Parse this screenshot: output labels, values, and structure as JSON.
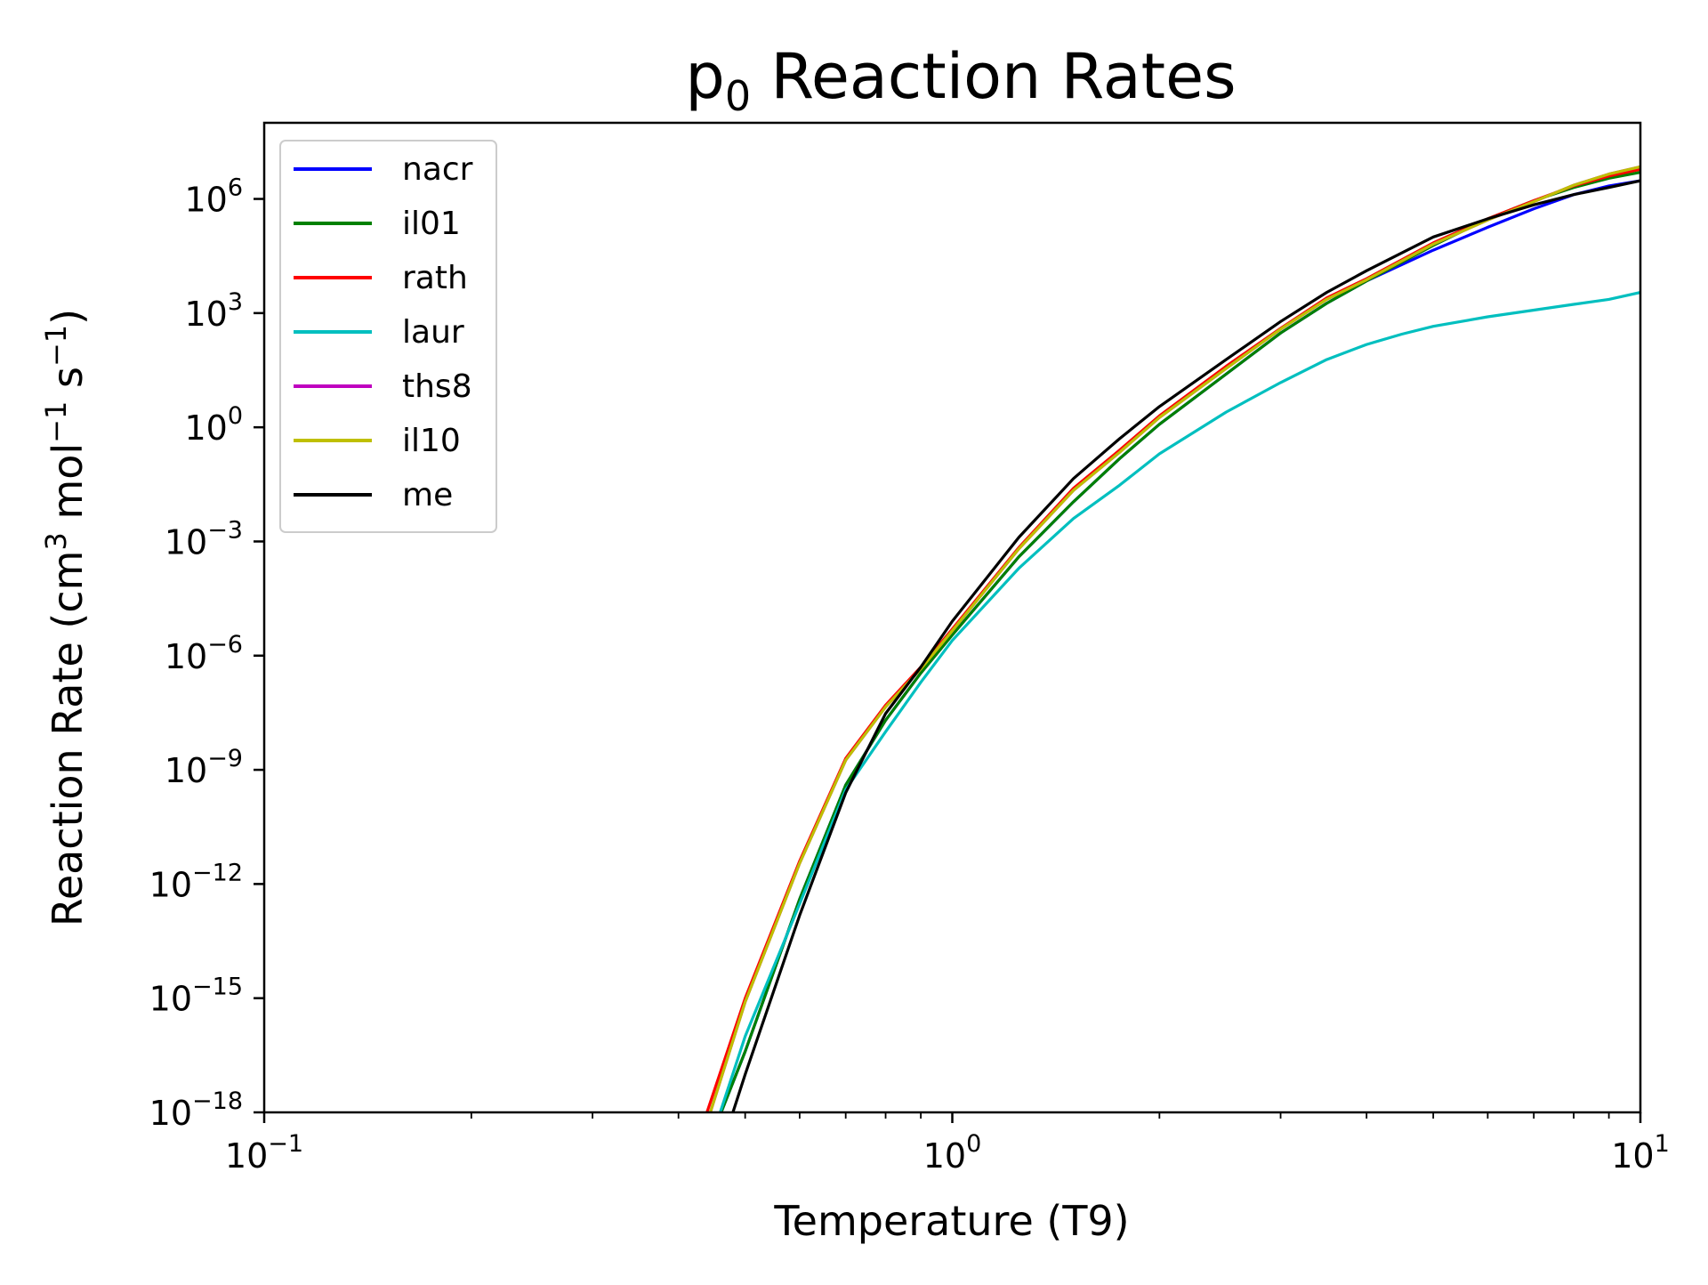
{
  "chart_data": {
    "type": "line",
    "title_main": "p",
    "title_sub": "0",
    "title_rest": " Reaction Rates",
    "xlabel": "Temperature (T9)",
    "ylabel_parts": [
      "Reaction Rate (cm",
      "3",
      " mol",
      "−1",
      " s",
      "−1",
      ")"
    ],
    "x_scale": "log",
    "y_scale": "log",
    "xlim": [
      0.1,
      10
    ],
    "ylim": [
      1e-18,
      100000000.0
    ],
    "grid": false,
    "legend_position": "upper-left",
    "x_ticks": [
      {
        "value": 0.1,
        "base": "10",
        "exp": "−1"
      },
      {
        "value": 1,
        "base": "10",
        "exp": "0"
      },
      {
        "value": 10,
        "base": "10",
        "exp": "1"
      }
    ],
    "y_ticks": [
      {
        "value": 1000000.0,
        "base": "10",
        "exp": "6"
      },
      {
        "value": 1000.0,
        "base": "10",
        "exp": "3"
      },
      {
        "value": 1,
        "base": "10",
        "exp": "0"
      },
      {
        "value": 0.001,
        "base": "10",
        "exp": "−3"
      },
      {
        "value": 1e-06,
        "base": "10",
        "exp": "−6"
      },
      {
        "value": 1e-09,
        "base": "10",
        "exp": "−9"
      },
      {
        "value": 1e-12,
        "base": "10",
        "exp": "−12"
      },
      {
        "value": 1e-15,
        "base": "10",
        "exp": "−15"
      },
      {
        "value": 1e-18,
        "base": "10",
        "exp": "−18"
      }
    ],
    "series": [
      {
        "name": "nacr",
        "color": "#0000ff",
        "x": [
          0.45,
          0.5,
          0.6,
          0.7,
          0.8,
          0.9,
          1.0,
          1.25,
          1.5,
          1.75,
          2.0,
          2.5,
          3.0,
          3.5,
          4.0,
          5.0,
          6.0,
          7.0,
          8.0,
          9.0,
          10.0
        ],
        "y": [
          3.2e-19,
          4e-17,
          4e-13,
          4e-10,
          2e-08,
          3.5e-07,
          3.5e-06,
          0.0004,
          0.011,
          0.15,
          1.2,
          25.0,
          300.0,
          1800.0,
          7000.0,
          45000.0,
          180000.0,
          550000.0,
          1300000.0,
          2200000.0,
          3000000.0
        ]
      },
      {
        "name": "il01",
        "color": "#008000",
        "x": [
          0.45,
          0.5,
          0.6,
          0.7,
          0.8,
          0.9,
          1.0,
          1.25,
          1.5,
          1.75,
          2.0,
          2.5,
          3.0,
          3.5,
          4.0,
          5.0,
          6.0,
          7.0,
          8.0,
          9.0,
          10.0
        ],
        "y": [
          3.2e-19,
          4e-17,
          4e-13,
          4e-10,
          2e-08,
          3.5e-07,
          3.5e-06,
          0.0004,
          0.011,
          0.15,
          1.2,
          25.0,
          300.0,
          1800.0,
          7000.0,
          60000.0,
          300000.0,
          900000.0,
          2000000.0,
          3500000.0,
          5000000.0
        ]
      },
      {
        "name": "rath",
        "color": "#ff0000",
        "x": [
          0.44,
          0.5,
          0.6,
          0.7,
          0.8,
          0.9,
          1.0,
          1.25,
          1.5,
          1.75,
          2.0,
          2.5,
          3.0,
          3.5,
          4.0,
          5.0,
          6.0,
          7.0,
          8.0,
          9.0,
          10.0
        ],
        "y": [
          1e-18,
          1e-15,
          4e-12,
          2e-09,
          5e-08,
          5e-07,
          5e-06,
          0.0007,
          0.025,
          0.25,
          2.0,
          40.0,
          400.0,
          2500.0,
          8000.0,
          70000.0,
          300000.0,
          900000.0,
          2200000.0,
          4000000.0,
          6000000.0
        ]
      },
      {
        "name": "laur",
        "color": "#00bfbf",
        "x": [
          0.46,
          0.5,
          0.6,
          0.7,
          0.8,
          0.9,
          1.0,
          1.25,
          1.5,
          1.75,
          2.0,
          2.5,
          3.0,
          3.5,
          4.0,
          4.5,
          5.0,
          6.0,
          7.0,
          8.0,
          9.0,
          10.0
        ],
        "y": [
          1e-18,
          1e-16,
          3e-13,
          3e-10,
          1e-08,
          2e-07,
          2.5e-06,
          0.0002,
          0.004,
          0.03,
          0.2,
          2.5,
          15.0,
          60.0,
          150.0,
          280.0,
          450.0,
          800.0,
          1200.0,
          1700.0,
          2300.0,
          3500.0
        ]
      },
      {
        "name": "ths8",
        "color": "#bf00bf",
        "x": [
          0.445,
          0.5,
          0.6,
          0.7,
          0.8,
          0.9,
          1.0,
          1.25,
          1.5,
          1.75,
          2.0,
          2.5,
          3.0,
          3.5,
          4.0,
          5.0,
          6.0,
          7.0,
          8.0,
          9.0,
          10.0
        ],
        "y": [
          1e-18,
          8e-16,
          3.5e-12,
          1.8e-09,
          4.5e-08,
          4.5e-07,
          4.5e-06,
          0.00065,
          0.022,
          0.22,
          1.8,
          35.0,
          380.0,
          2300.0,
          7500.0,
          65000.0,
          280000.0,
          850000.0,
          2300000.0,
          4500000.0,
          7000000.0
        ]
      },
      {
        "name": "il10",
        "color": "#bfbf00",
        "x": [
          0.445,
          0.5,
          0.6,
          0.7,
          0.8,
          0.9,
          1.0,
          1.25,
          1.5,
          1.75,
          2.0,
          2.5,
          3.0,
          3.5,
          4.0,
          5.0,
          6.0,
          7.0,
          8.0,
          9.0,
          10.0
        ],
        "y": [
          1e-18,
          8e-16,
          3.5e-12,
          1.8e-09,
          4.5e-08,
          4.5e-07,
          4.5e-06,
          0.00065,
          0.022,
          0.22,
          1.8,
          35.0,
          380.0,
          2300.0,
          7500.0,
          65000.0,
          280000.0,
          850000.0,
          2300000.0,
          4500000.0,
          7000000.0
        ]
      },
      {
        "name": "me",
        "color": "#000000",
        "x": [
          0.48,
          0.5,
          0.6,
          0.7,
          0.8,
          0.9,
          1.0,
          1.25,
          1.5,
          1.75,
          2.0,
          2.5,
          3.0,
          3.5,
          4.0,
          5.0,
          6.0,
          7.0,
          8.0,
          9.0,
          10.0
        ],
        "y": [
          1e-18,
          1e-17,
          1.5e-13,
          2.5e-10,
          3e-08,
          5e-07,
          8e-06,
          0.0013,
          0.045,
          0.5,
          3.5,
          60.0,
          600.0,
          3500.0,
          13000.0,
          100000.0,
          300000.0,
          700000.0,
          1300000.0,
          2000000.0,
          3000000.0
        ]
      }
    ]
  }
}
